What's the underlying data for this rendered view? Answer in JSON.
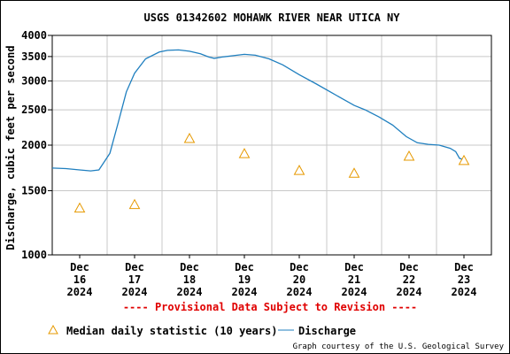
{
  "chart_data": {
    "type": "line",
    "title": "USGS 01342602 MOHAWK RIVER NEAR UTICA NY",
    "ylabel": "Discharge, cubic feet per second",
    "xlabel": "",
    "y_scale": "log",
    "ylim": [
      1000,
      4000
    ],
    "y_ticks": [
      {
        "value": 1000,
        "label": "1000"
      },
      {
        "value": 1500,
        "label": "1500"
      },
      {
        "value": 2000,
        "label": "2000"
      },
      {
        "value": 2500,
        "label": "2500"
      },
      {
        "value": 3000,
        "label": "3000"
      },
      {
        "value": 3500,
        "label": "3500"
      },
      {
        "value": 4000,
        "label": "4000"
      }
    ],
    "xlim": [
      15.5,
      23.5
    ],
    "x_ticks": [
      {
        "value": 16,
        "label": [
          "Dec",
          "16",
          "2024"
        ]
      },
      {
        "value": 17,
        "label": [
          "Dec",
          "17",
          "2024"
        ]
      },
      {
        "value": 18,
        "label": [
          "Dec",
          "18",
          "2024"
        ]
      },
      {
        "value": 19,
        "label": [
          "Dec",
          "19",
          "2024"
        ]
      },
      {
        "value": 20,
        "label": [
          "Dec",
          "20",
          "2024"
        ]
      },
      {
        "value": 21,
        "label": [
          "Dec",
          "21",
          "2024"
        ]
      },
      {
        "value": 22,
        "label": [
          "Dec",
          "22",
          "2024"
        ]
      },
      {
        "value": 23,
        "label": [
          "Dec",
          "23",
          "2024"
        ]
      }
    ],
    "grid": true,
    "series": [
      {
        "name": "Discharge",
        "kind": "line",
        "color": "#1f7fbf",
        "points": [
          [
            15.5,
            1730
          ],
          [
            15.75,
            1725
          ],
          [
            16.0,
            1710
          ],
          [
            16.2,
            1700
          ],
          [
            16.35,
            1710
          ],
          [
            16.55,
            1900
          ],
          [
            16.7,
            2300
          ],
          [
            16.85,
            2800
          ],
          [
            17.0,
            3150
          ],
          [
            17.2,
            3450
          ],
          [
            17.45,
            3600
          ],
          [
            17.6,
            3640
          ],
          [
            17.8,
            3650
          ],
          [
            18.0,
            3620
          ],
          [
            18.2,
            3560
          ],
          [
            18.35,
            3490
          ],
          [
            18.45,
            3460
          ],
          [
            18.6,
            3490
          ],
          [
            18.8,
            3520
          ],
          [
            19.0,
            3550
          ],
          [
            19.2,
            3530
          ],
          [
            19.45,
            3450
          ],
          [
            19.7,
            3320
          ],
          [
            20.0,
            3120
          ],
          [
            20.3,
            2950
          ],
          [
            20.6,
            2780
          ],
          [
            21.0,
            2570
          ],
          [
            21.2,
            2500
          ],
          [
            21.45,
            2390
          ],
          [
            21.7,
            2270
          ],
          [
            21.95,
            2110
          ],
          [
            22.15,
            2030
          ],
          [
            22.35,
            2010
          ],
          [
            22.55,
            2000
          ],
          [
            22.75,
            1960
          ],
          [
            22.85,
            1920
          ],
          [
            22.92,
            1840
          ],
          [
            22.97,
            1830
          ]
        ]
      },
      {
        "name": "Median daily statistic (10 years)",
        "kind": "marker",
        "marker": "triangle",
        "color": "#e69900",
        "points": [
          [
            16.0,
            1340
          ],
          [
            17.0,
            1370
          ],
          [
            18.0,
            2080
          ],
          [
            19.0,
            1890
          ],
          [
            20.0,
            1700
          ],
          [
            21.0,
            1670
          ],
          [
            22.0,
            1860
          ],
          [
            23.0,
            1810
          ]
        ]
      }
    ],
    "legend": {
      "placement": "bottom",
      "items": [
        {
          "label": "Median daily statistic (10 years)",
          "symbol": "triangle"
        },
        {
          "label": "Discharge",
          "symbol": "line"
        }
      ]
    },
    "annotations": {
      "provisional": "---- Provisional Data Subject to Revision ----",
      "credit": "Graph courtesy of the U.S. Geological Survey"
    },
    "colors": {
      "grid": "#c8c8c8",
      "provisional": "#e00000"
    }
  }
}
